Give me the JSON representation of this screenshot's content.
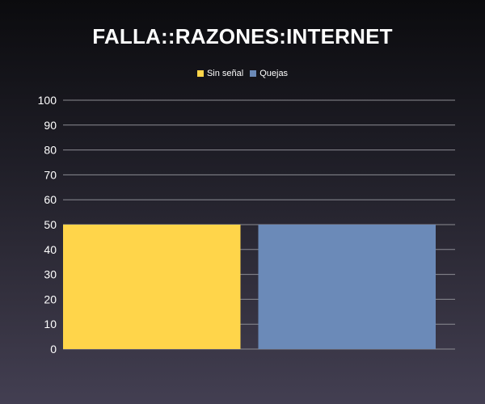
{
  "chart_data": {
    "type": "bar",
    "title": "FALLA::RAZONES:INTERNET",
    "xlabel": "",
    "ylabel": "",
    "ylim": [
      0,
      100
    ],
    "yticks": [
      0,
      10,
      20,
      30,
      40,
      50,
      60,
      70,
      80,
      90,
      100
    ],
    "grid": true,
    "legend_position": "top-center",
    "series": [
      {
        "name": "Sin señal",
        "color": "#ffd54a",
        "value": 50
      },
      {
        "name": "Quejas",
        "color": "#6b8ab8",
        "value": 50
      }
    ]
  }
}
